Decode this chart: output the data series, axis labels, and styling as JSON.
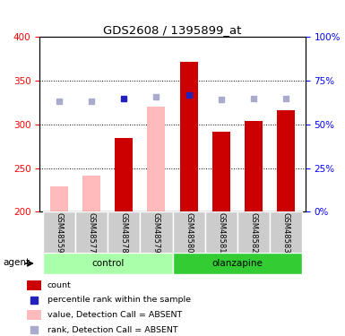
{
  "title": "GDS2608 / 1395899_at",
  "samples": [
    "GSM48559",
    "GSM48577",
    "GSM48578",
    "GSM48579",
    "GSM48580",
    "GSM48581",
    "GSM48582",
    "GSM48583"
  ],
  "count_present": [
    null,
    null,
    284,
    null,
    372,
    292,
    304,
    316
  ],
  "count_absent": [
    229,
    241,
    null,
    320,
    null,
    null,
    null,
    null
  ],
  "pct_present": [
    null,
    null,
    65,
    null,
    67,
    null,
    null,
    null
  ],
  "pct_absent": [
    63,
    63,
    null,
    66,
    null,
    64,
    65,
    65
  ],
  "ylim": [
    200,
    400
  ],
  "y2lim": [
    0,
    100
  ],
  "yticks": [
    200,
    250,
    300,
    350,
    400
  ],
  "y2ticks": [
    0,
    25,
    50,
    75,
    100
  ],
  "bar_color_count": "#cc0000",
  "bar_color_absent": "#ffbbbb",
  "sq_color_present": "#2222bb",
  "sq_color_absent": "#aaaacc",
  "group_bg_light": "#aaffaa",
  "group_bg_dark": "#33cc33",
  "sample_bg": "#cccccc",
  "agent_label": "agent",
  "group_label_control": "control",
  "group_label_olanzapine": "olanzapine"
}
